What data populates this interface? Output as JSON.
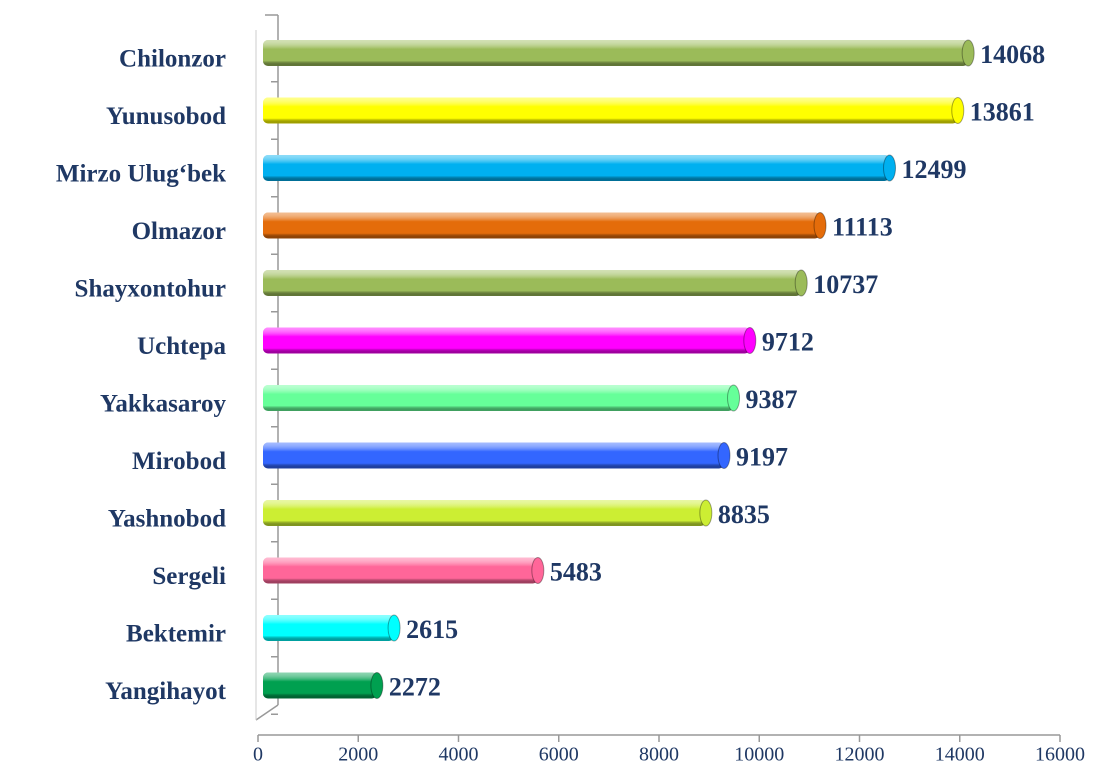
{
  "chart_data": {
    "type": "bar",
    "orientation": "horizontal",
    "categories": [
      "Chilonzor",
      "Yunusobod",
      "Mirzo Ulug‘bek",
      "Olmazor",
      "Shayxontohur",
      "Uchtepa",
      "Yakkasaroy",
      "Mirobod",
      "Yashnobod",
      "Sergeli",
      "Bektemir",
      "Yangihayot"
    ],
    "values": [
      14068,
      13861,
      12499,
      11113,
      10737,
      9712,
      9387,
      9197,
      8835,
      5483,
      2615,
      2272
    ],
    "colors": [
      "#9bbb59",
      "#ffff00",
      "#00b0f0",
      "#e46c0a",
      "#9bbb59",
      "#ff00ff",
      "#66ff99",
      "#3366ff",
      "#ccee33",
      "#ff6699",
      "#00ffff",
      "#00a050"
    ],
    "xlim": [
      0,
      16000
    ],
    "xticks": [
      0,
      2000,
      4000,
      6000,
      8000,
      10000,
      12000,
      14000,
      16000
    ]
  }
}
